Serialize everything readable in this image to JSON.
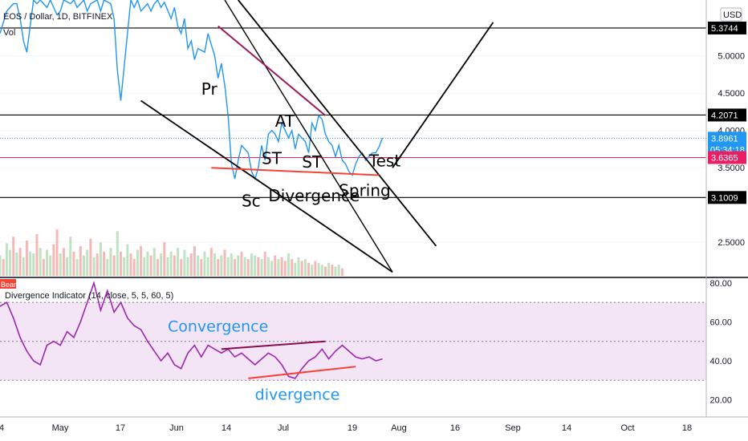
{
  "chart_data": [
    {
      "type": "line",
      "title": "EOS / Dollar, 1D, BITFINEX",
      "volume_label": "Vol",
      "currency": "USD",
      "colors": {
        "price": "#2196f3",
        "volume_up": "#a5d6a7",
        "volume_down": "#ef9a9a",
        "support_line": "#e91e63",
        "red_trend": "#f44336",
        "maroon_trend": "#9c1a5a",
        "black_line": "#000000"
      },
      "ylim": [
        2.05,
        5.75
      ],
      "y_ticks": [
        "5.0000",
        "4.5000",
        "4.0000",
        "3.5000",
        "2.5000"
      ],
      "x_tick_labels": [
        "4",
        "May",
        "17",
        "Jun",
        "14",
        "Jul",
        "19",
        "Aug",
        "16",
        "Sep",
        "14",
        "Oct",
        "18"
      ],
      "price_tags": [
        {
          "label": "5.3744",
          "value": 5.3744
        },
        {
          "label": "4.2071",
          "value": 4.2071
        },
        {
          "label": "3.8961",
          "value": 3.8961,
          "countdown": "05:34:18"
        },
        {
          "label": "3.6365",
          "value": 3.6365
        },
        {
          "label": "3.1009",
          "value": 3.1009
        }
      ],
      "series": [
        {
          "name": "EOS / Dollar",
          "x": [
            0,
            2,
            4,
            5,
            6,
            7,
            8,
            10,
            11,
            12,
            13,
            14,
            15,
            17,
            18,
            19,
            21,
            22,
            23,
            24,
            25,
            26,
            27,
            29,
            30,
            31,
            33,
            34,
            35,
            36,
            38,
            39,
            40,
            41,
            42,
            43,
            44,
            45,
            46,
            47,
            48,
            49,
            51,
            52,
            53,
            54,
            55,
            56,
            57,
            58,
            59,
            61,
            62,
            63,
            64,
            65,
            66,
            67,
            68,
            69,
            70,
            71,
            72,
            74,
            75,
            76,
            77,
            78,
            79,
            80,
            81,
            82,
            83,
            84,
            85,
            86,
            87,
            88,
            89,
            91,
            92,
            93,
            94,
            95,
            96,
            97,
            98,
            99,
            100,
            101,
            102,
            103,
            104,
            105,
            106,
            107,
            108,
            109,
            110,
            111,
            112,
            113,
            114
          ],
          "values": [
            5.3,
            5.6,
            5.7,
            5.7,
            5.5,
            5.2,
            5.05,
            5.75,
            5.7,
            5.75,
            5.7,
            5.65,
            5.75,
            5.55,
            5.6,
            5.75,
            5.7,
            5.75,
            5.65,
            5.7,
            5.75,
            5.6,
            5.7,
            5.75,
            5.6,
            5.75,
            5.7,
            5.5,
            4.8,
            4.4,
            5.3,
            5.75,
            5.65,
            5.75,
            5.6,
            5.65,
            5.7,
            5.6,
            5.7,
            5.75,
            5.65,
            5.72,
            5.5,
            5.65,
            5.4,
            5.3,
            5.5,
            5.1,
            5.2,
            4.95,
            5.1,
            5.05,
            5.3,
            5.15,
            5.0,
            4.7,
            4.9,
            4.6,
            4.2,
            3.55,
            3.35,
            3.6,
            3.8,
            3.7,
            3.45,
            3.35,
            3.5,
            3.8,
            3.6,
            3.95,
            4.0,
            3.95,
            3.85,
            4.1,
            4.0,
            3.9,
            4.0,
            3.75,
            3.95,
            3.85,
            3.7,
            4.1,
            4.0,
            4.2,
            4.15,
            3.95,
            3.85,
            3.8,
            3.65,
            3.8,
            3.6,
            3.55,
            3.45,
            3.4,
            3.55,
            3.65,
            3.7,
            3.6,
            3.65,
            3.7,
            3.7,
            3.78,
            3.9
          ]
        }
      ],
      "volume": {
        "values": [
          22,
          18,
          35,
          28,
          42,
          25,
          30,
          20,
          38,
          26,
          24,
          45,
          30,
          18,
          28,
          22,
          34,
          50,
          24,
          30,
          20,
          42,
          26,
          18,
          32,
          22,
          28,
          40,
          20,
          24,
          36,
          26,
          18,
          30,
          22,
          48,
          26,
          20,
          34,
          24,
          18,
          28,
          32,
          20,
          26,
          22,
          30,
          18,
          24,
          36,
          20,
          26,
          22,
          30,
          18,
          28,
          20,
          24,
          32,
          22,
          18,
          26,
          20,
          30,
          24,
          18,
          22,
          28,
          20,
          24,
          18,
          22,
          26,
          20,
          18,
          24,
          22,
          20,
          18,
          26,
          20,
          16,
          22,
          18,
          20,
          16,
          24,
          18,
          14,
          20,
          16,
          18,
          14,
          12,
          16,
          14,
          12,
          10,
          14,
          12,
          10,
          12,
          8
        ],
        "up": [
          true,
          false,
          true,
          true,
          false,
          true,
          false,
          true,
          false,
          true,
          true,
          false,
          true,
          false,
          true,
          true,
          false,
          false,
          true,
          false,
          true,
          true,
          false,
          true,
          false,
          true,
          true,
          false,
          true,
          false,
          true,
          false,
          true,
          true,
          false,
          true,
          false,
          true,
          true,
          false,
          false,
          true,
          false,
          true,
          true,
          false,
          true,
          false,
          true,
          false,
          true,
          true,
          false,
          true,
          false,
          true,
          true,
          false,
          false,
          true,
          false,
          true,
          true,
          false,
          true,
          false,
          true,
          false,
          true,
          true,
          false,
          true,
          false,
          true,
          false,
          true,
          true,
          false,
          true,
          false,
          true,
          true,
          false,
          true,
          false,
          false,
          true,
          false,
          true,
          true,
          false,
          true,
          false,
          true,
          false,
          true,
          true,
          false,
          true,
          false,
          true,
          true,
          false
        ]
      },
      "annotations": [
        "Pr",
        "AT",
        "ST",
        "ST",
        "Sc",
        "Divergence",
        "Spring",
        "Test"
      ]
    },
    {
      "type": "line",
      "title": "Divergence Indicator (14, close, 5, 5, 60, 5)",
      "badge": "Bear",
      "colors": {
        "line": "#9c27b0",
        "band": "#f3e5f5",
        "trend_up": "#880e4f",
        "trend_down": "#f44336"
      },
      "ylim": [
        12,
        82
      ],
      "y_ticks": [
        "80.00",
        "60.00",
        "40.00",
        "20.00"
      ],
      "band": [
        30,
        70
      ],
      "series": [
        {
          "name": "Divergence Indicator",
          "x": [
            0,
            2,
            4,
            6,
            8,
            10,
            12,
            14,
            16,
            18,
            20,
            22,
            24,
            26,
            28,
            30,
            32,
            34,
            36,
            38,
            40,
            42,
            44,
            46,
            48,
            50,
            52,
            54,
            56,
            58,
            60,
            62,
            64,
            66,
            68,
            70,
            72,
            74,
            76,
            78,
            80,
            82,
            84,
            86,
            88,
            90,
            92,
            94,
            96,
            98,
            100,
            102,
            104,
            106,
            108,
            110,
            112,
            114
          ],
          "values": [
            68,
            70,
            62,
            52,
            45,
            40,
            38,
            48,
            50,
            48,
            55,
            52,
            60,
            70,
            80,
            66,
            76,
            65,
            70,
            62,
            58,
            56,
            50,
            45,
            40,
            44,
            38,
            36,
            44,
            48,
            42,
            48,
            46,
            44,
            46,
            42,
            44,
            41,
            38,
            41,
            44,
            42,
            38,
            32,
            31,
            36,
            40,
            42,
            46,
            41,
            45,
            48,
            45,
            42,
            41,
            42,
            40,
            41
          ]
        }
      ],
      "annotations": [
        "Convergence",
        "divergence"
      ]
    }
  ]
}
